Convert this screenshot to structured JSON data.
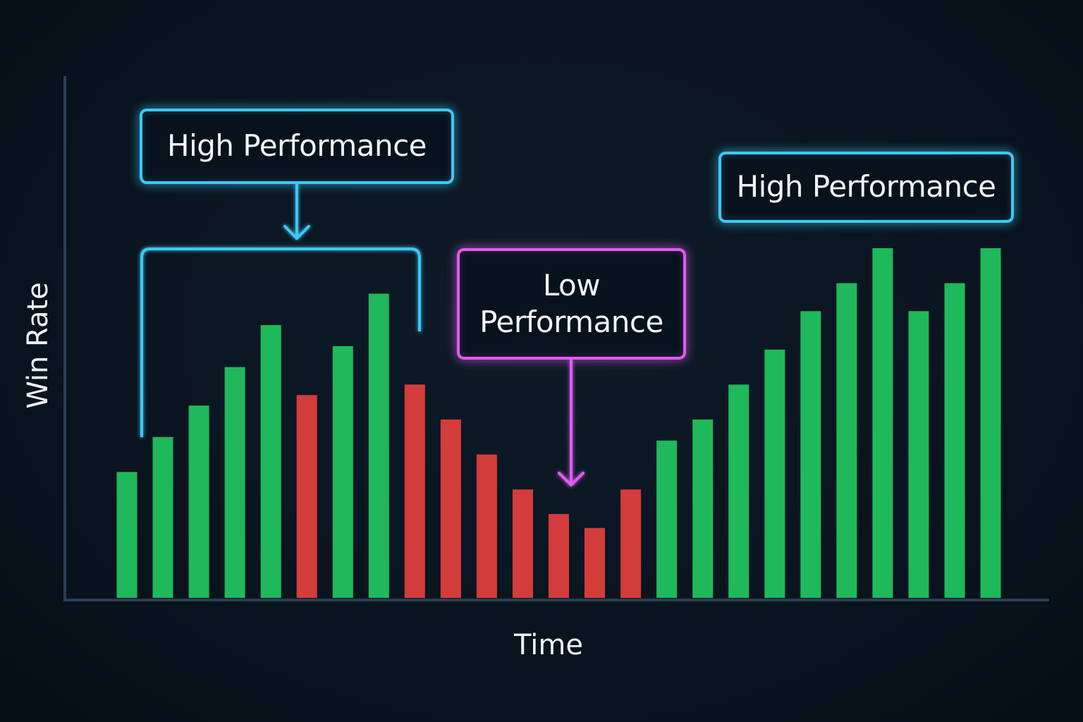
{
  "chart_data": {
    "type": "bar",
    "title": "",
    "xlabel": "Time",
    "ylabel": "Win Rate",
    "x_ticks": "none",
    "y_ticks": "none",
    "ylim": [
      0,
      100
    ],
    "grid": false,
    "legend": "none",
    "colors": {
      "up": "#1fb85a",
      "down": "#d43c3c",
      "axis": "#2c3e50",
      "highlight_blue": "#3ec8f5",
      "highlight_pink": "#e05cf0",
      "background": "#0a1521"
    },
    "bars": [
      {
        "value": 36,
        "direction": "up"
      },
      {
        "value": 46,
        "direction": "up"
      },
      {
        "value": 55,
        "direction": "up"
      },
      {
        "value": 66,
        "direction": "up"
      },
      {
        "value": 78,
        "direction": "up"
      },
      {
        "value": 58,
        "direction": "down"
      },
      {
        "value": 72,
        "direction": "up"
      },
      {
        "value": 87,
        "direction": "up"
      },
      {
        "value": 61,
        "direction": "down"
      },
      {
        "value": 51,
        "direction": "down"
      },
      {
        "value": 41,
        "direction": "down"
      },
      {
        "value": 31,
        "direction": "down"
      },
      {
        "value": 24,
        "direction": "down"
      },
      {
        "value": 20,
        "direction": "down"
      },
      {
        "value": 31,
        "direction": "down"
      },
      {
        "value": 45,
        "direction": "up"
      },
      {
        "value": 51,
        "direction": "up"
      },
      {
        "value": 61,
        "direction": "up"
      },
      {
        "value": 71,
        "direction": "up"
      },
      {
        "value": 82,
        "direction": "up"
      },
      {
        "value": 90,
        "direction": "up"
      },
      {
        "value": 100,
        "direction": "up"
      },
      {
        "value": 82,
        "direction": "up"
      },
      {
        "value": 90,
        "direction": "up"
      },
      {
        "value": 100,
        "direction": "up"
      }
    ],
    "annotations": [
      {
        "id": "high-left",
        "text": "High Performance",
        "style": "blue",
        "bracket": true
      },
      {
        "id": "low",
        "text": "Low\nPerformance",
        "style": "pink"
      },
      {
        "id": "high-right",
        "text": "High Performance",
        "style": "blue"
      }
    ]
  }
}
